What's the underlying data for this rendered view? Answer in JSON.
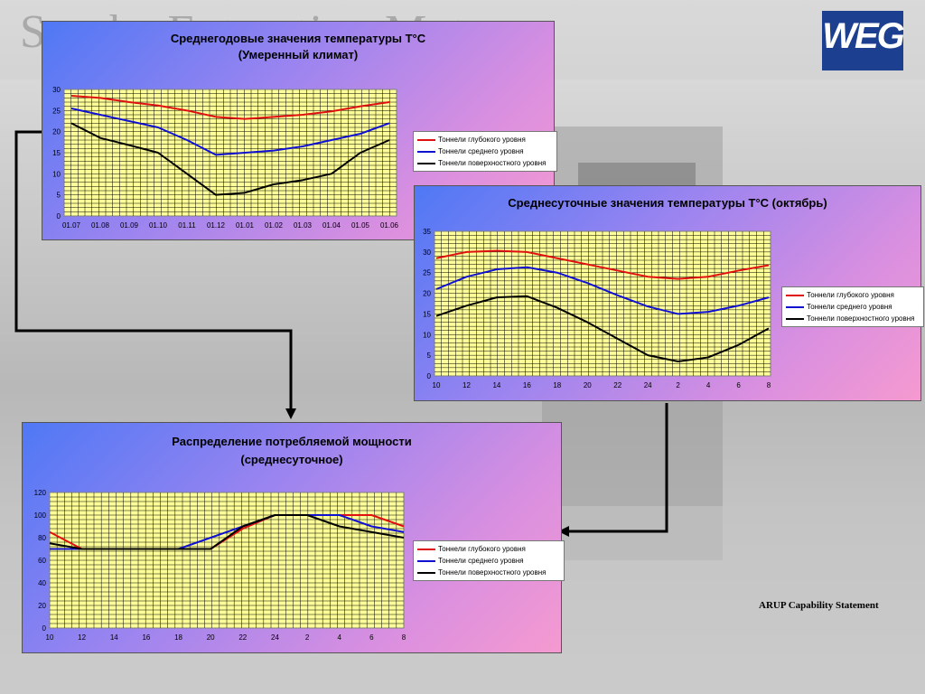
{
  "page": {
    "background_title": "Smoke Extraction Motors",
    "logo_text": "WEG",
    "footer_note": "ARUP Capability Statement"
  },
  "colors": {
    "deep": "#e01010",
    "medium": "#1010d0",
    "surface": "#000000",
    "plot_bg": "#ffff99",
    "grid": "#000000"
  },
  "chart_data": [
    {
      "type": "line",
      "title": "Среднегодовые значения температуры T°С",
      "subtitle": "(Умеренный климат)",
      "categories": [
        "01.07",
        "01.08",
        "01.09",
        "01.10",
        "01.11",
        "01.12",
        "01.01",
        "01.02",
        "01.03",
        "01.04",
        "01.05",
        "01.06"
      ],
      "y_ticks": [
        0,
        5,
        10,
        15,
        20,
        25,
        30
      ],
      "ylim": [
        0,
        30
      ],
      "grid": true,
      "legend_position": "right",
      "series": [
        {
          "name": "Тоннели глубокого уровня",
          "color_key": "deep",
          "values": [
            28.5,
            28,
            27,
            26.2,
            25,
            23.5,
            23,
            23.5,
            24,
            24.8,
            26,
            27
          ]
        },
        {
          "name": "Тоннели среднего уровня",
          "color_key": "medium",
          "values": [
            25.5,
            24,
            22.5,
            21,
            18,
            14.5,
            15,
            15.5,
            16.5,
            18,
            19.5,
            22
          ]
        },
        {
          "name": "Тоннели поверхностного уровня",
          "color_key": "surface",
          "values": [
            22,
            18.5,
            16.8,
            15,
            10,
            5,
            5.5,
            7.5,
            8.5,
            10,
            15,
            18
          ]
        }
      ]
    },
    {
      "type": "line",
      "title": "Среднесуточные значения температуры T°С (октябрь)",
      "subtitle": "",
      "categories": [
        "10",
        "12",
        "14",
        "16",
        "18",
        "20",
        "22",
        "24",
        "2",
        "4",
        "6",
        "8"
      ],
      "y_ticks": [
        0,
        5,
        10,
        15,
        20,
        25,
        30,
        35
      ],
      "ylim": [
        0,
        35
      ],
      "grid": true,
      "legend_position": "right",
      "series": [
        {
          "name": "Тоннели глубокого уровня",
          "color_key": "deep",
          "values": [
            28.5,
            30,
            30.3,
            30,
            28.5,
            27,
            25.5,
            24,
            23.5,
            24,
            25.5,
            26.8
          ]
        },
        {
          "name": "Тоннели среднего уровня",
          "color_key": "medium",
          "values": [
            21,
            24,
            25.8,
            26.3,
            25,
            22.5,
            19.5,
            16.8,
            15,
            15.5,
            17,
            19
          ]
        },
        {
          "name": "Тоннели поверхностного уровня",
          "color_key": "surface",
          "values": [
            14.5,
            17,
            19,
            19.3,
            16.5,
            13,
            9,
            5,
            3.5,
            4.5,
            7.5,
            11.5
          ]
        }
      ]
    },
    {
      "type": "line",
      "title": "Распределение потребляемой мощности",
      "subtitle": "(среднесуточное)",
      "categories": [
        "10",
        "12",
        "14",
        "16",
        "18",
        "20",
        "22",
        "24",
        "2",
        "4",
        "6",
        "8"
      ],
      "y_ticks": [
        0,
        20,
        40,
        60,
        80,
        100,
        120
      ],
      "ylim": [
        0,
        120
      ],
      "grid": true,
      "legend_position": "right",
      "series": [
        {
          "name": "Тоннели глубокого уровня",
          "color_key": "deep",
          "values": [
            85,
            70,
            70,
            70,
            70,
            70,
            88,
            100,
            100,
            100,
            100,
            90
          ]
        },
        {
          "name": "Тоннели среднего уровня",
          "color_key": "medium",
          "values": [
            70,
            70,
            70,
            70,
            70,
            80,
            90,
            100,
            100,
            100,
            90,
            85
          ]
        },
        {
          "name": "Тоннели поверхностного уровня",
          "color_key": "surface",
          "values": [
            75,
            70,
            70,
            70,
            70,
            70,
            90,
            100,
            100,
            90,
            85,
            80
          ]
        }
      ]
    }
  ]
}
